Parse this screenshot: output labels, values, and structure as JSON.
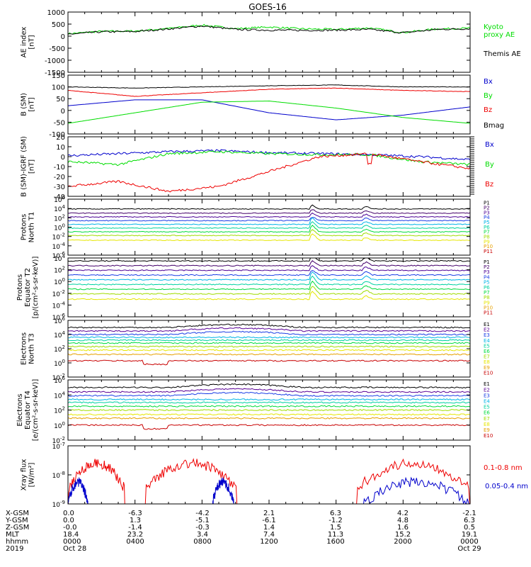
{
  "title": "GOES-16",
  "colors": {
    "black": "#000000",
    "red": "#ee0000",
    "green": "#00dd00",
    "blue": "#0000cc",
    "yellow": "#dddd00",
    "proton_levels": [
      "#000000",
      "#44006a",
      "#4b0096",
      "#1a3ee6",
      "#00b4e6",
      "#00d2a0",
      "#00dc3c",
      "#a0dc00",
      "#e6e600",
      "#e6a000",
      "#c80000"
    ],
    "electron_levels": [
      "#000000",
      "#5a0096",
      "#1a3ee6",
      "#00b4e6",
      "#00d2a0",
      "#00dc3c",
      "#a0dc00",
      "#e6e600",
      "#e6a000",
      "#c80000"
    ]
  },
  "chart_data": [
    {
      "type": "line",
      "panel": "ae",
      "ylabel_lines": [
        "AE index",
        "[nT]"
      ],
      "ylim": [
        -1500,
        1000
      ],
      "yticks": [
        "1000",
        "500",
        "0",
        "-500",
        "-1000",
        "-1500"
      ],
      "series": [
        {
          "name": "Kyoto",
          "color": "green",
          "x": [
            0,
            2,
            4,
            6,
            8,
            10,
            12,
            14,
            16,
            18,
            20,
            22,
            24
          ],
          "y": [
            100,
            200,
            210,
            320,
            460,
            310,
            380,
            300,
            280,
            340,
            150,
            300,
            330
          ]
        },
        {
          "name": "Themis AE",
          "color": "black",
          "x": [
            0,
            2,
            4,
            6,
            8,
            10,
            12,
            14,
            16,
            18,
            20,
            22,
            24
          ],
          "y": [
            80,
            180,
            190,
            300,
            420,
            280,
            250,
            240,
            250,
            280,
            140,
            280,
            310
          ]
        }
      ],
      "legend": [
        "Kyoto",
        "proxy AE",
        "Themis AE"
      ]
    },
    {
      "type": "line",
      "panel": "b_sm",
      "ylabel_lines": [
        "B (SM)",
        "[nT]"
      ],
      "ylim": [
        -100,
        150
      ],
      "yticks": [
        "150",
        "100",
        "50",
        "0",
        "-50",
        "-100"
      ],
      "series": [
        {
          "name": "Bx",
          "color": "blue",
          "x": [
            0,
            4,
            8,
            12,
            16,
            20,
            24
          ],
          "y": [
            20,
            45,
            45,
            -10,
            -40,
            -20,
            15
          ]
        },
        {
          "name": "By",
          "color": "green",
          "x": [
            0,
            4,
            8,
            12,
            16,
            20,
            24
          ],
          "y": [
            -55,
            -10,
            35,
            40,
            10,
            -30,
            -55
          ]
        },
        {
          "name": "Bz",
          "color": "red",
          "x": [
            0,
            4,
            8,
            12,
            16,
            20,
            24
          ],
          "y": [
            85,
            60,
            75,
            90,
            95,
            85,
            80
          ]
        },
        {
          "name": "Bmag",
          "color": "black",
          "x": [
            0,
            4,
            8,
            12,
            16,
            20,
            24
          ],
          "y": [
            100,
            95,
            100,
            105,
            108,
            100,
            100
          ]
        }
      ]
    },
    {
      "type": "line",
      "panel": "b_igrf",
      "ylabel_lines": [
        "B (SM)-IGRF (SM)",
        "[nT]"
      ],
      "ylim": [
        -40,
        20
      ],
      "yticks": [
        "20",
        "10",
        "0",
        "-10",
        "-20",
        "-30",
        "-40"
      ],
      "series": [
        {
          "name": "Bx",
          "color": "blue",
          "x": [
            0,
            3,
            6,
            9,
            12,
            15,
            18,
            21,
            24
          ],
          "y": [
            1,
            3,
            5,
            6,
            4,
            3,
            2,
            0,
            -3
          ]
        },
        {
          "name": "By",
          "color": "green",
          "x": [
            0,
            3,
            6,
            9,
            12,
            15,
            18,
            21,
            24
          ],
          "y": [
            -5,
            -8,
            3,
            5,
            3,
            2,
            2,
            -5,
            -8
          ]
        },
        {
          "name": "Bz",
          "color": "red",
          "x": [
            0,
            3,
            6,
            9,
            12,
            15,
            18,
            21,
            24
          ],
          "y": [
            -30,
            -25,
            -35,
            -30,
            -15,
            0,
            3,
            -5,
            -12
          ]
        }
      ]
    },
    {
      "type": "line",
      "panel": "protons_t1",
      "ylabel_lines": [
        "Protons",
        "North T1"
      ],
      "log": true,
      "ylim": [
        -6,
        6
      ],
      "ytick_labels": [
        {
          "m": "10",
          "e": "6"
        },
        {
          "m": "10",
          "e": "4"
        },
        {
          "m": "10",
          "e": "2"
        },
        {
          "m": "10",
          "e": "0"
        },
        {
          "m": "10",
          "e": "-2"
        },
        {
          "m": "10",
          "e": "-4"
        },
        {
          "m": "10",
          "e": "-6"
        }
      ],
      "series": [
        {
          "name": "P1",
          "log10_level": 3.9
        },
        {
          "name": "P2",
          "log10_level": 3.0
        },
        {
          "name": "P3",
          "log10_level": 2.2
        },
        {
          "name": "P4",
          "log10_level": 1.4
        },
        {
          "name": "P5",
          "log10_level": 0.6
        },
        {
          "name": "P6",
          "log10_level": -0.2
        },
        {
          "name": "P7",
          "log10_level": -1.0
        },
        {
          "name": "P8",
          "log10_level": -1.8
        },
        {
          "name": "P9",
          "log10_level": -2.8
        },
        {
          "name": "P10",
          "log10_level": null
        },
        {
          "name": "P11",
          "log10_level": null
        }
      ]
    },
    {
      "type": "line",
      "panel": "protons_t2",
      "ylabel_lines": [
        "Protons",
        "Equator T2",
        "[p/(cm²-s-sr-keV)]"
      ],
      "log": true,
      "ylim": [
        -6,
        4
      ],
      "ytick_labels": [
        {
          "m": "10",
          "e": "4"
        },
        {
          "m": "10",
          "e": "2"
        },
        {
          "m": "10",
          "e": "0"
        },
        {
          "m": "10",
          "e": "-2"
        },
        {
          "m": "10",
          "e": "-4"
        },
        {
          "m": "10",
          "e": "-6"
        }
      ],
      "series": [
        {
          "name": "P1",
          "log10_level": 3.5
        },
        {
          "name": "P2",
          "log10_level": 2.7
        },
        {
          "name": "P3",
          "log10_level": 1.9
        },
        {
          "name": "P4",
          "log10_level": 1.1
        },
        {
          "name": "P5",
          "log10_level": 0.3
        },
        {
          "name": "P6",
          "log10_level": -0.5
        },
        {
          "name": "P7",
          "log10_level": -1.3
        },
        {
          "name": "P8",
          "log10_level": -2.1
        },
        {
          "name": "P9",
          "log10_level": -3.0
        },
        {
          "name": "P10",
          "log10_level": null
        },
        {
          "name": "P11",
          "log10_level": null
        }
      ]
    },
    {
      "type": "line",
      "panel": "electrons_t3",
      "ylabel_lines": [
        "Electrons",
        "North T3"
      ],
      "log": true,
      "ylim": [
        -2,
        6
      ],
      "ytick_labels": [
        {
          "m": "10",
          "e": "6"
        },
        {
          "m": "10",
          "e": "4"
        },
        {
          "m": "10",
          "e": "2"
        },
        {
          "m": "10",
          "e": "0"
        },
        {
          "m": "10",
          "e": "-2"
        }
      ],
      "series": [
        {
          "name": "E1",
          "log10_level": 5.0
        },
        {
          "name": "E2",
          "log10_level": 4.5
        },
        {
          "name": "E3",
          "log10_level": 4.0
        },
        {
          "name": "E4",
          "log10_level": 3.6
        },
        {
          "name": "E5",
          "log10_level": 3.2
        },
        {
          "name": "E6",
          "log10_level": 2.8
        },
        {
          "name": "E7",
          "log10_level": 2.3
        },
        {
          "name": "E8",
          "log10_level": 1.8
        },
        {
          "name": "E9",
          "log10_level": 1.2
        },
        {
          "name": "E10",
          "log10_level": 0.3
        }
      ]
    },
    {
      "type": "line",
      "panel": "electrons_t4",
      "ylabel_lines": [
        "Electrons",
        "Equator T4",
        "[e/(cm²-s-sr-keV)]"
      ],
      "log": true,
      "ylim": [
        -2,
        6
      ],
      "ytick_labels": [
        {
          "m": "10",
          "e": "6"
        },
        {
          "m": "10",
          "e": "4"
        },
        {
          "m": "10",
          "e": "2"
        },
        {
          "m": "10",
          "e": "0"
        },
        {
          "m": "10",
          "e": "-2"
        }
      ],
      "series": [
        {
          "name": "E1",
          "log10_level": 5.0
        },
        {
          "name": "E2",
          "log10_level": 4.4
        },
        {
          "name": "E3",
          "log10_level": 3.9
        },
        {
          "name": "E4",
          "log10_level": 3.4
        },
        {
          "name": "E5",
          "log10_level": 3.0
        },
        {
          "name": "E6",
          "log10_level": 2.5
        },
        {
          "name": "E7",
          "log10_level": 2.0
        },
        {
          "name": "E8",
          "log10_level": 1.4
        },
        {
          "name": "E9",
          "log10_level": 0.9
        },
        {
          "name": "E10",
          "log10_level": 0.0
        }
      ]
    },
    {
      "type": "line",
      "panel": "xray",
      "ylabel_lines": [
        "Xray flux",
        "[W/m²]"
      ],
      "log": true,
      "ylim": [
        -9,
        -7
      ],
      "ytick_labels": [
        {
          "m": "10",
          "e": "-7"
        },
        {
          "m": "10",
          "e": "-8"
        },
        {
          "m": "10",
          "e": "-9"
        }
      ],
      "series": [
        {
          "name": "0.1-0.8 nm",
          "color": "red"
        },
        {
          "name": "0.05-0.4 nm",
          "color": "blue"
        }
      ]
    }
  ],
  "ephemeris": {
    "rows": [
      {
        "label": "X-GSM",
        "values": [
          "0.0",
          "-6.3",
          "-4.2",
          "2.1",
          "6.3",
          "4.2",
          "-2.1"
        ]
      },
      {
        "label": "Y-GSM",
        "values": [
          "0.0",
          "1.3",
          "-5.1",
          "-6.1",
          "-1.2",
          "4.8",
          "6.3"
        ]
      },
      {
        "label": "Z-GSM",
        "values": [
          "-0.0",
          "-1.4",
          "-0.3",
          "1.4",
          "1.5",
          "1.6",
          "0.5"
        ]
      },
      {
        "label": "MLT",
        "values": [
          "18.4",
          "23.2",
          "3.4",
          "7.4",
          "11.3",
          "15.2",
          "19.1"
        ]
      },
      {
        "label": "hhmm",
        "values": [
          "0000",
          "0400",
          "0800",
          "1200",
          "1600",
          "2000",
          "0000"
        ]
      },
      {
        "label": "2019",
        "values": [
          "Oct 28",
          "",
          "",
          "",
          "",
          "",
          "Oct 29"
        ]
      }
    ]
  }
}
